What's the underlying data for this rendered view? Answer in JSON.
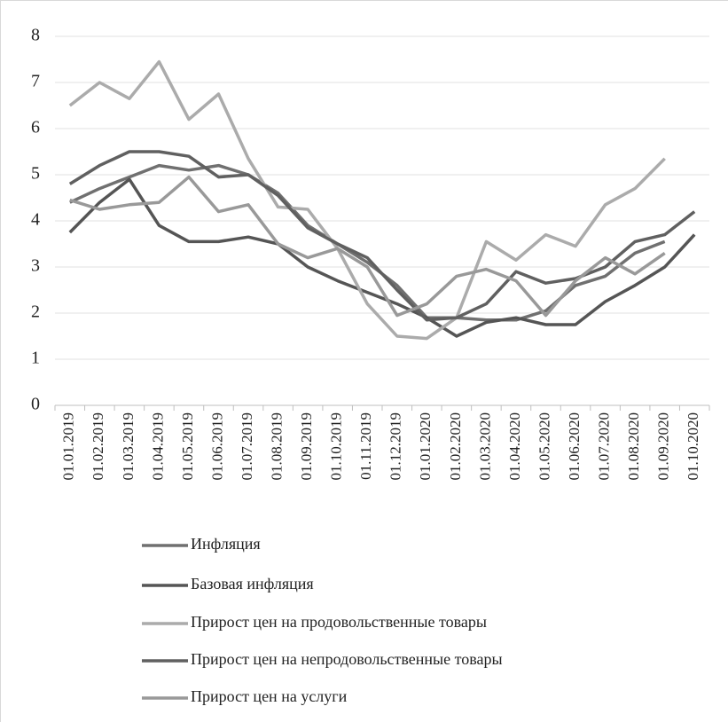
{
  "chart_data": {
    "type": "line",
    "categories": [
      "01.01.2019",
      "01.02.2019",
      "01.03.2019",
      "01.04.2019",
      "01.05.2019",
      "01.06.2019",
      "01.07.2019",
      "01.08.2019",
      "01.09.2019",
      "01.10.2019",
      "01.11.2019",
      "01.12.2019",
      "01.01.2020",
      "01.02.2020",
      "01.03.2020",
      "01.04.2020",
      "01.05.2020",
      "01.06.2020",
      "01.07.2020",
      "01.08.2020",
      "01.09.2020",
      "01.10.2020"
    ],
    "series": [
      {
        "name": "Инфляция",
        "color": "#707070",
        "values": [
          4.4,
          4.7,
          4.95,
          5.2,
          5.1,
          5.2,
          5.0,
          4.6,
          3.9,
          3.5,
          3.1,
          2.6,
          1.9,
          1.9,
          1.85,
          1.85,
          2.05,
          2.6,
          2.8,
          3.3,
          3.55,
          null
        ]
      },
      {
        "name": "Базовая инфляция",
        "color": "#555555",
        "values": [
          3.75,
          4.4,
          4.9,
          3.9,
          3.55,
          3.55,
          3.65,
          3.5,
          3.0,
          2.7,
          2.45,
          2.2,
          1.9,
          1.5,
          1.8,
          1.9,
          1.75,
          1.75,
          2.25,
          2.6,
          3.0,
          3.7
        ]
      },
      {
        "name": "Прирост цен на продовольственные товары",
        "color": "#ababab",
        "values": [
          6.5,
          7.0,
          6.65,
          7.45,
          6.2,
          6.75,
          5.35,
          4.3,
          4.25,
          3.4,
          2.2,
          1.5,
          1.45,
          1.9,
          3.55,
          3.15,
          3.7,
          3.45,
          4.35,
          4.7,
          5.35,
          null
        ]
      },
      {
        "name": "Прирост цен на непродовольственные товары",
        "color": "#606060",
        "values": [
          4.8,
          5.2,
          5.5,
          5.5,
          5.4,
          4.95,
          5.0,
          4.55,
          3.85,
          3.5,
          3.2,
          2.5,
          1.85,
          1.9,
          2.2,
          2.9,
          2.65,
          2.75,
          3.0,
          3.55,
          3.7,
          4.2
        ]
      },
      {
        "name": "Прирост цен на услуги",
        "color": "#999999",
        "values": [
          4.45,
          4.25,
          4.35,
          4.4,
          4.95,
          4.2,
          4.35,
          3.5,
          3.2,
          3.4,
          3.0,
          1.95,
          2.2,
          2.8,
          2.95,
          2.7,
          1.95,
          2.7,
          3.2,
          2.85,
          3.3,
          null
        ]
      }
    ],
    "ylim": [
      0,
      8
    ],
    "yticks": [
      0,
      1,
      2,
      3,
      4,
      5,
      6,
      7,
      8
    ],
    "grid": true
  }
}
